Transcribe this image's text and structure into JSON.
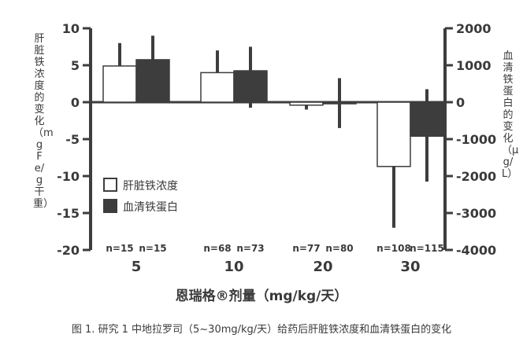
{
  "chart_data": {
    "type": "bar",
    "categories": [
      "5",
      "10",
      "20",
      "30"
    ],
    "n_labels": [
      [
        "n=15",
        "n=15"
      ],
      [
        "n=68",
        "n=73"
      ],
      [
        "n=77",
        "n=80"
      ],
      [
        "n=108",
        "n=115"
      ]
    ],
    "series": [
      {
        "name": "肝脏铁浓度",
        "axis": "left",
        "fill": "#ffffff",
        "values": [
          4.9,
          4.0,
          -0.4,
          -8.7
        ],
        "error_low": [
          3.5,
          3.0,
          -1.0,
          -17.0
        ],
        "error_high": [
          8.0,
          7.0,
          0.0,
          -2.0
        ]
      },
      {
        "name": "血清铁蛋白",
        "axis": "right",
        "fill": "#3d3d3d",
        "values": [
          1150,
          850,
          -40,
          -920
        ],
        "error_low": [
          700,
          -150,
          -700,
          -2150
        ],
        "error_high": [
          1800,
          1500,
          650,
          350
        ]
      }
    ],
    "left_axis": {
      "label": "肝脏铁浓度的变化（mg Fe/g 干重）",
      "ylim": [
        -20,
        10
      ],
      "ticks": [
        10,
        5,
        0,
        -5,
        -10,
        -15,
        -20
      ],
      "tick_labels": [
        "10",
        "5",
        "0",
        "-5",
        "-10",
        "-15",
        "-20"
      ]
    },
    "right_axis": {
      "label": "血清铁蛋白的变化（μg/L）",
      "ylim": [
        -4000,
        2000
      ],
      "ticks": [
        2000,
        1000,
        0,
        -1000,
        -2000,
        -3000,
        -4000
      ],
      "tick_labels": [
        "2000",
        "1000",
        "0",
        "-1000",
        "-2000",
        "-3000",
        "-4000"
      ]
    },
    "xlabel": "恩瑞格®剂量（mg/kg/天）",
    "legend_placement": "lower-left",
    "grid": false
  },
  "caption": "图 1. 研究 1 中地拉罗司（5~30mg/kg/天）给药后肝脏铁浓度和血清铁蛋白的变化",
  "colors": {
    "axis": "#3d3d3d",
    "dark_bar": "#3d3d3d",
    "text": "#3a3a3a"
  }
}
